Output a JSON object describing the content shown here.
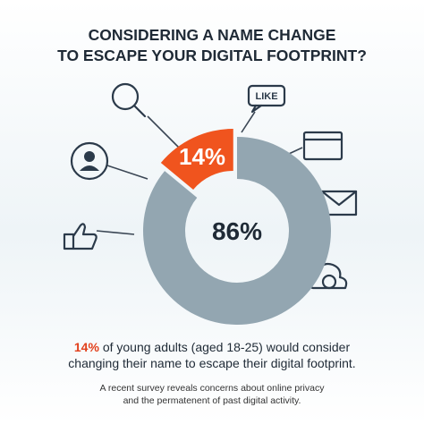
{
  "chart_data": {
    "type": "donut",
    "title": [
      "CONSIDERING A NAME CHANGE",
      "TO ESCAPE YOUR DIGITAL FOOTPRINT?"
    ],
    "values": [
      14,
      86
    ],
    "value_labels": [
      "14%",
      "86%"
    ],
    "colors": [
      "#f0541e",
      "#93a6b1"
    ],
    "icon_label": "LIKE",
    "caption_highlight": "14%",
    "caption": [
      "of young adults (aged 18-25) would consider",
      "changing their name to escape their digital footprint."
    ],
    "note": [
      "A recent survey reveals concerns about online privacy",
      "and the permatenent of past digital activity."
    ]
  }
}
